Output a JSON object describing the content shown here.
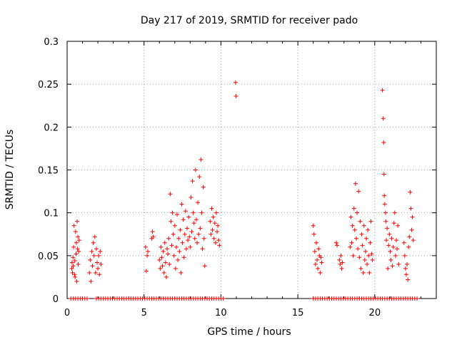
{
  "chart_data": {
    "type": "scatter",
    "title": "Day 217 of 2019, SRMTID for receiver pado",
    "xlabel": "GPS time / hours",
    "ylabel": "SRMTID / TECUs",
    "xlim": [
      0,
      24
    ],
    "ylim": [
      0,
      0.3
    ],
    "xticks": [
      0,
      5,
      10,
      15,
      20
    ],
    "xtick_labels": [
      "0",
      "5",
      "10",
      "15",
      "20"
    ],
    "yticks": [
      0,
      0.05,
      0.1,
      0.15,
      0.2,
      0.25,
      0.3
    ],
    "ytick_labels": [
      "0",
      "0.05",
      "0.1",
      "0.15",
      "0.2",
      "0.25",
      "0.3"
    ],
    "grid": true,
    "marker": "+",
    "marker_color": "#ff0000",
    "series": [
      {
        "name": "SRMTID",
        "points": [
          [
            0.3,
            0.035
          ],
          [
            0.32,
            0.042
          ],
          [
            0.35,
            0.03
          ],
          [
            0.38,
            0.048
          ],
          [
            0.4,
            0.038
          ],
          [
            0.42,
            0.06
          ],
          [
            0.45,
            0.085
          ],
          [
            0.48,
            0.028
          ],
          [
            0.5,
            0.044
          ],
          [
            0.52,
            0.025
          ],
          [
            0.55,
            0.078
          ],
          [
            0.58,
            0.052
          ],
          [
            0.6,
            0.065
          ],
          [
            0.62,
            0.02
          ],
          [
            0.65,
            0.09
          ],
          [
            0.68,
            0.058
          ],
          [
            0.7,
            0.072
          ],
          [
            0.72,
            0.04
          ],
          [
            0.75,
            0.055
          ],
          [
            0.78,
            0.068
          ],
          [
            1.45,
            0.03
          ],
          [
            1.5,
            0.045
          ],
          [
            1.55,
            0.02
          ],
          [
            1.6,
            0.055
          ],
          [
            1.65,
            0.038
          ],
          [
            1.7,
            0.065
          ],
          [
            1.75,
            0.05
          ],
          [
            1.8,
            0.072
          ],
          [
            1.85,
            0.03
          ],
          [
            1.9,
            0.058
          ],
          [
            1.95,
            0.042
          ],
          [
            2.0,
            0.035
          ],
          [
            2.05,
            0.05
          ],
          [
            2.1,
            0.028
          ],
          [
            2.15,
            0.055
          ],
          [
            2.2,
            0.04
          ],
          [
            5.1,
            0.06
          ],
          [
            5.15,
            0.032
          ],
          [
            5.2,
            0.05
          ],
          [
            5.25,
            0.055
          ],
          [
            5.5,
            0.07
          ],
          [
            5.55,
            0.078
          ],
          [
            5.6,
            0.072
          ],
          [
            6.0,
            0.045
          ],
          [
            6.05,
            0.035
          ],
          [
            6.1,
            0.06
          ],
          [
            6.15,
            0.048
          ],
          [
            6.2,
            0.038
          ],
          [
            6.25,
            0.055
          ],
          [
            6.3,
            0.03
          ],
          [
            6.35,
            0.065
          ],
          [
            6.4,
            0.042
          ],
          [
            6.45,
            0.025
          ],
          [
            6.5,
            0.058
          ],
          [
            6.55,
            0.052
          ],
          [
            6.6,
            0.07
          ],
          [
            6.65,
            0.04
          ],
          [
            6.7,
            0.122
          ],
          [
            6.75,
            0.09
          ],
          [
            6.8,
            0.062
          ],
          [
            6.85,
            0.1
          ],
          [
            6.9,
            0.075
          ],
          [
            6.95,
            0.05
          ],
          [
            7.0,
            0.085
          ],
          [
            7.05,
            0.035
          ],
          [
            7.1,
            0.06
          ],
          [
            7.15,
            0.098
          ],
          [
            7.2,
            0.045
          ],
          [
            7.25,
            0.07
          ],
          [
            7.3,
            0.055
          ],
          [
            7.35,
            0.08
          ],
          [
            7.4,
            0.03
          ],
          [
            7.45,
            0.11
          ],
          [
            7.5,
            0.065
          ],
          [
            7.55,
            0.092
          ],
          [
            7.6,
            0.048
          ],
          [
            7.65,
            0.075
          ],
          [
            7.7,
            0.102
          ],
          [
            7.75,
            0.058
          ],
          [
            7.8,
            0.082
          ],
          [
            7.85,
            0.068
          ],
          [
            7.9,
            0.095
          ],
          [
            7.95,
            0.072
          ],
          [
            8.0,
            0.06
          ],
          [
            8.05,
            0.118
          ],
          [
            8.1,
            0.078
          ],
          [
            8.15,
            0.137
          ],
          [
            8.2,
            0.1
          ],
          [
            8.25,
            0.088
          ],
          [
            8.3,
            0.07
          ],
          [
            8.35,
            0.15
          ],
          [
            8.4,
            0.092
          ],
          [
            8.45,
            0.065
          ],
          [
            8.5,
            0.112
          ],
          [
            8.55,
            0.075
          ],
          [
            8.6,
            0.142
          ],
          [
            8.65,
            0.082
          ],
          [
            8.7,
            0.162
          ],
          [
            8.75,
            0.1
          ],
          [
            8.8,
            0.058
          ],
          [
            8.85,
            0.13
          ],
          [
            8.9,
            0.07
          ],
          [
            8.95,
            0.038
          ],
          [
            9.3,
            0.09
          ],
          [
            9.35,
            0.075
          ],
          [
            9.4,
            0.105
          ],
          [
            9.45,
            0.08
          ],
          [
            9.5,
            0.095
          ],
          [
            9.55,
            0.07
          ],
          [
            9.6,
            0.088
          ],
          [
            9.65,
            0.065
          ],
          [
            9.7,
            0.1
          ],
          [
            9.75,
            0.078
          ],
          [
            9.8,
            0.085
          ],
          [
            9.85,
            0.068
          ],
          [
            9.9,
            0.062
          ],
          [
            10.95,
            0.252
          ],
          [
            10.98,
            0.236
          ],
          [
            16.0,
            0.085
          ],
          [
            16.05,
            0.075
          ],
          [
            16.1,
            0.055
          ],
          [
            16.15,
            0.04
          ],
          [
            16.2,
            0.065
          ],
          [
            16.25,
            0.045
          ],
          [
            16.3,
            0.035
          ],
          [
            16.35,
            0.058
          ],
          [
            16.4,
            0.05
          ],
          [
            16.45,
            0.03
          ],
          [
            16.5,
            0.048
          ],
          [
            16.55,
            0.042
          ],
          [
            17.5,
            0.065
          ],
          [
            17.55,
            0.062
          ],
          [
            17.7,
            0.045
          ],
          [
            17.75,
            0.04
          ],
          [
            17.8,
            0.05
          ],
          [
            17.85,
            0.035
          ],
          [
            17.9,
            0.042
          ],
          [
            18.4,
            0.06
          ],
          [
            18.45,
            0.095
          ],
          [
            18.5,
            0.065
          ],
          [
            18.55,
            0.085
          ],
          [
            18.6,
            0.05
          ],
          [
            18.65,
            0.105
          ],
          [
            18.7,
            0.08
          ],
          [
            18.75,
            0.134
          ],
          [
            18.8,
            0.07
          ],
          [
            18.85,
            0.1
          ],
          [
            18.9,
            0.058
          ],
          [
            18.95,
            0.125
          ],
          [
            19.0,
            0.048
          ],
          [
            19.05,
            0.09
          ],
          [
            19.1,
            0.035
          ],
          [
            19.15,
            0.075
          ],
          [
            19.2,
            0.062
          ],
          [
            19.25,
            0.03
          ],
          [
            19.3,
            0.085
          ],
          [
            19.35,
            0.045
          ],
          [
            19.4,
            0.055
          ],
          [
            19.45,
            0.07
          ],
          [
            19.5,
            0.04
          ],
          [
            19.55,
            0.08
          ],
          [
            19.6,
            0.05
          ],
          [
            19.65,
            0.03
          ],
          [
            19.7,
            0.065
          ],
          [
            19.75,
            0.09
          ],
          [
            19.8,
            0.052
          ],
          [
            19.85,
            0.045
          ],
          [
            20.5,
            0.243
          ],
          [
            20.55,
            0.21
          ],
          [
            20.58,
            0.182
          ],
          [
            20.6,
            0.145
          ],
          [
            20.62,
            0.12
          ],
          [
            20.65,
            0.11
          ],
          [
            20.7,
            0.1
          ],
          [
            20.72,
            0.09
          ],
          [
            20.75,
            0.068
          ],
          [
            20.8,
            0.082
          ],
          [
            20.85,
            0.035
          ],
          [
            20.9,
            0.062
          ],
          [
            20.95,
            0.075
          ],
          [
            21.0,
            0.055
          ],
          [
            21.05,
            0.045
          ],
          [
            21.1,
            0.07
          ],
          [
            21.15,
            0.038
          ],
          [
            21.2,
            0.06
          ],
          [
            21.25,
            0.088
          ],
          [
            21.3,
            0.1
          ],
          [
            21.35,
            0.05
          ],
          [
            21.4,
            0.068
          ],
          [
            21.45,
            0.058
          ],
          [
            21.5,
            0.085
          ],
          [
            21.55,
            0.04
          ],
          [
            21.9,
            0.065
          ],
          [
            21.95,
            0.05
          ],
          [
            22.0,
            0.035
          ],
          [
            22.05,
            0.028
          ],
          [
            22.1,
            0.04
          ],
          [
            22.15,
            0.022
          ],
          [
            22.2,
            0.06
          ],
          [
            22.25,
            0.072
          ],
          [
            22.3,
            0.124
          ],
          [
            22.35,
            0.105
          ],
          [
            22.4,
            0.08
          ],
          [
            22.45,
            0.095
          ],
          [
            22.5,
            0.068
          ]
        ],
        "zero_points": [
          0.25,
          0.4,
          0.55,
          0.7,
          0.85,
          1.0,
          1.15,
          1.3,
          1.9,
          2.05,
          2.2,
          2.35,
          2.5,
          2.65,
          2.8,
          2.95,
          3.1,
          3.25,
          3.4,
          3.55,
          3.7,
          3.85,
          4.0,
          4.15,
          4.3,
          4.45,
          4.6,
          4.75,
          4.9,
          5.05,
          5.2,
          5.35,
          5.5,
          5.65,
          5.8,
          5.95,
          6.1,
          6.25,
          6.4,
          6.55,
          6.7,
          6.85,
          7.0,
          7.15,
          7.3,
          7.45,
          7.6,
          7.75,
          7.9,
          8.05,
          8.2,
          8.35,
          8.5,
          8.65,
          8.8,
          8.95,
          9.1,
          9.25,
          9.4,
          9.55,
          9.7,
          9.85,
          10.0,
          10.15,
          16.0,
          16.15,
          16.3,
          16.45,
          16.6,
          16.75,
          16.9,
          17.05,
          17.2,
          17.35,
          17.5,
          17.65,
          17.8,
          17.95,
          18.1,
          18.25,
          18.4,
          18.55,
          18.7,
          18.85,
          19.0,
          19.15,
          19.3,
          19.45,
          19.6,
          19.75,
          19.9,
          20.05,
          20.2,
          20.35,
          20.5,
          20.65,
          20.8,
          20.95,
          21.1,
          21.25,
          21.4,
          21.55,
          21.7,
          21.85,
          22.0,
          22.15,
          22.3,
          22.45,
          22.6,
          22.75
        ]
      }
    ]
  }
}
